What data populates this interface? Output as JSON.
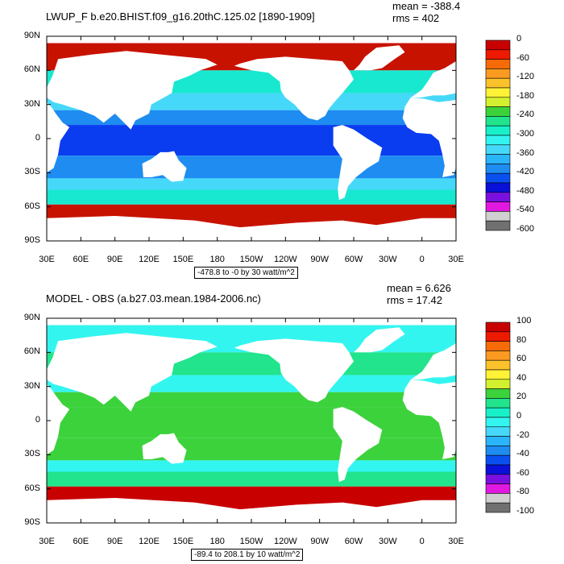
{
  "chart_data": [
    {
      "type": "heatmap",
      "title": "LWUP_F b.e20.BHIST.f09_g16.20thC.125.02 [1890-1909]",
      "mean_label": "mean = -388.4",
      "rms_label": "rms = 402",
      "contour_note": "-478.8 to -0 by 30 watt/m^2",
      "x_ticks": [
        "30E",
        "60E",
        "90E",
        "120E",
        "150E",
        "180",
        "150W",
        "120W",
        "90W",
        "60W",
        "30W",
        "0",
        "30E"
      ],
      "y_ticks": [
        "90N",
        "60N",
        "30N",
        "0",
        "30S",
        "60S",
        "90S"
      ],
      "xlim": [
        30,
        390
      ],
      "ylim": [
        -90,
        90
      ],
      "colorbar": {
        "labels": [
          "0",
          "-60",
          "-120",
          "-180",
          "-240",
          "-300",
          "-360",
          "-420",
          "-480",
          "-540",
          "-600"
        ],
        "colors": [
          "#c80000",
          "#ee1a00",
          "#f76a08",
          "#fb9a20",
          "#fcc22c",
          "#fff237",
          "#d2f02e",
          "#3cd23c",
          "#21e48c",
          "#18f0c8",
          "#33f5f0",
          "#46d8f8",
          "#2ab4fa",
          "#1e8cf0",
          "#0a50f0",
          "#0a10d8",
          "#7a10e0",
          "#e018e0",
          "#d0d0d0",
          "#707070"
        ]
      },
      "fill": {
        "polar_n": "#c81200",
        "polar_s": "#c81200",
        "tropics": "#0a3cf0",
        "subtropics": "#1e8cf0",
        "midlat": "#46d8f8",
        "highlat": "#18e8d0"
      }
    },
    {
      "type": "heatmap",
      "title": "MODEL - OBS (a.b27.03.mean.1984-2006.nc)",
      "mean_label": "mean = 6.626",
      "rms_label": "rms = 17.42",
      "contour_note": "-89.4 to 208.1 by 10 watt/m^2",
      "x_ticks": [
        "30E",
        "60E",
        "90E",
        "120E",
        "150E",
        "180",
        "150W",
        "120W",
        "90W",
        "60W",
        "30W",
        "0",
        "30E"
      ],
      "y_ticks": [
        "90N",
        "60N",
        "30N",
        "0",
        "30S",
        "60S",
        "90S"
      ],
      "xlim": [
        30,
        390
      ],
      "ylim": [
        -90,
        90
      ],
      "colorbar": {
        "labels": [
          "100",
          "80",
          "60",
          "40",
          "20",
          "0",
          "-20",
          "-40",
          "-60",
          "-80",
          "-100"
        ],
        "colors": [
          "#c80000",
          "#ee1a00",
          "#f76a08",
          "#fb9a20",
          "#fcc22c",
          "#fff237",
          "#d2f02e",
          "#3cd23c",
          "#21e48c",
          "#18f0c8",
          "#33f5f0",
          "#46d8f8",
          "#2ab4fa",
          "#1e8cf0",
          "#0a50f0",
          "#0a10d8",
          "#7a10e0",
          "#e018e0",
          "#d0d0d0",
          "#707070"
        ]
      },
      "fill": {
        "polar_n": "#33f5f0",
        "polar_s": "#c80000",
        "tropics": "#3cd23c",
        "subtropics": "#3cd23c",
        "midlat": "#33f5f0",
        "highlat": "#21e48c"
      }
    }
  ]
}
